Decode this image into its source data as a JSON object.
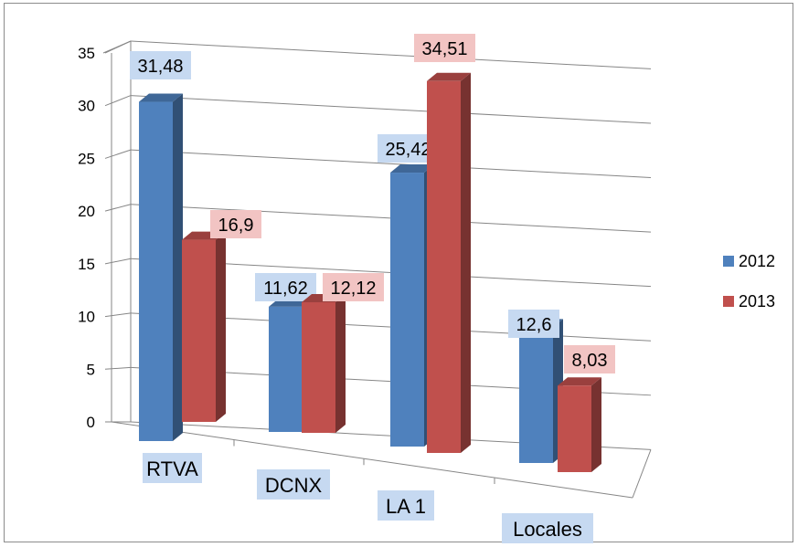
{
  "chart_data": {
    "type": "bar",
    "style": "3d-clustered-column",
    "categories": [
      "RTVA",
      "DCNX",
      "LA 1",
      "Locales"
    ],
    "series": [
      {
        "name": "2012",
        "values": [
          31.48,
          11.62,
          25.42,
          12.6
        ],
        "color": "#4F81BD",
        "label_bg": "#C6D9F1",
        "labels": [
          "31,48",
          "11,62",
          "25,42",
          "12,6"
        ]
      },
      {
        "name": "2013",
        "values": [
          16.9,
          12.12,
          34.51,
          8.03
        ],
        "color": "#C0504D",
        "label_bg": "#F2C4C3",
        "labels": [
          "16,9",
          "12,12",
          "34,51",
          "8,03"
        ]
      }
    ],
    "y_ticks": [
      "0",
      "5",
      "10",
      "15",
      "20",
      "25",
      "30",
      "35"
    ],
    "ylim": [
      0,
      35
    ],
    "grid": true,
    "legend_position": "right"
  }
}
